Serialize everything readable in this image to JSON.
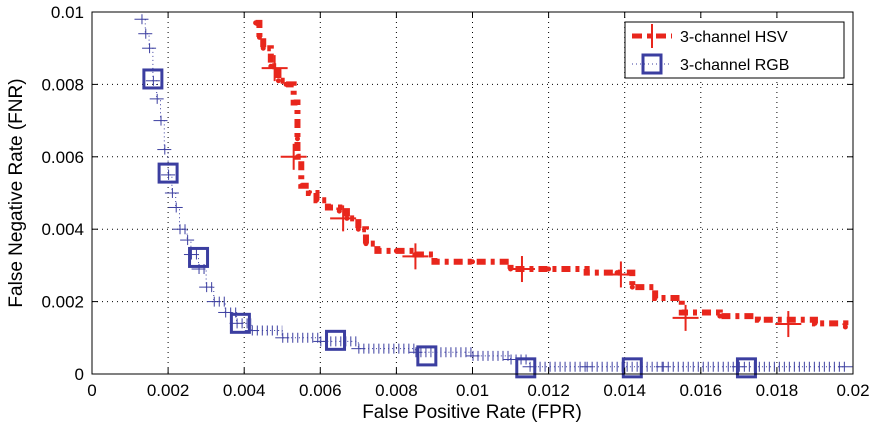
{
  "chart_data": {
    "type": "line",
    "title": "",
    "xlabel": "False Positive Rate (FPR)",
    "ylabel": "False Negative Rate (FNR)",
    "xlim": [
      0,
      0.02
    ],
    "ylim": [
      0,
      0.01
    ],
    "xticks": [
      "0",
      "0.002",
      "0.004",
      "0.006",
      "0.008",
      "0.01",
      "0.012",
      "0.014",
      "0.016",
      "0.018",
      "0.02"
    ],
    "yticks": [
      "0",
      "0.002",
      "0.004",
      "0.006",
      "0.008",
      "0.01"
    ],
    "grid": true,
    "legend_position": "top-right",
    "series": [
      {
        "name": "3-channel HSV",
        "color": "#e8261c",
        "marker": "plus",
        "line_style": "dash-dot",
        "x": [
          0.0043,
          0.0044,
          0.0045,
          0.0047,
          0.0049,
          0.0051,
          0.0053,
          0.0054,
          0.0054,
          0.0055,
          0.0057,
          0.0059,
          0.0062,
          0.0065,
          0.0067,
          0.007,
          0.0072,
          0.0075,
          0.008,
          0.0085,
          0.009,
          0.01,
          0.011,
          0.012,
          0.013,
          0.0138,
          0.0142,
          0.0148,
          0.0155,
          0.0165,
          0.0175,
          0.019,
          0.0198
        ],
        "y": [
          0.0097,
          0.0093,
          0.009,
          0.0085,
          0.0081,
          0.008,
          0.0075,
          0.0065,
          0.006,
          0.0052,
          0.005,
          0.0048,
          0.0046,
          0.0045,
          0.0043,
          0.004,
          0.0036,
          0.0034,
          0.0034,
          0.0033,
          0.0031,
          0.0031,
          0.0029,
          0.0029,
          0.0028,
          0.0028,
          0.0024,
          0.0021,
          0.0017,
          0.0016,
          0.0015,
          0.0014,
          0.0013
        ],
        "markers": [
          [
            0.0048,
            0.00845
          ],
          [
            0.0053,
            0.006
          ],
          [
            0.0066,
            0.0043
          ],
          [
            0.0085,
            0.00325
          ],
          [
            0.0113,
            0.0029
          ],
          [
            0.0139,
            0.00275
          ],
          [
            0.0156,
            0.00155
          ],
          [
            0.0183,
            0.00138
          ]
        ]
      },
      {
        "name": "3-channel RGB",
        "color": "#3b3ea0",
        "marker": "square",
        "line_style": "dotted",
        "x": [
          0.0013,
          0.0014,
          0.0015,
          0.0016,
          0.0017,
          0.0018,
          0.0019,
          0.002,
          0.0021,
          0.0022,
          0.0023,
          0.0025,
          0.0026,
          0.0028,
          0.003,
          0.0032,
          0.0035,
          0.0038,
          0.0042,
          0.005,
          0.006,
          0.007,
          0.0085,
          0.01,
          0.011,
          0.0115,
          0.013,
          0.015,
          0.017,
          0.0198
        ],
        "y": [
          0.0098,
          0.0094,
          0.009,
          0.0081,
          0.0076,
          0.007,
          0.0062,
          0.0055,
          0.005,
          0.0046,
          0.004,
          0.0037,
          0.0033,
          0.0029,
          0.0024,
          0.002,
          0.0017,
          0.0014,
          0.0012,
          0.001,
          0.0009,
          0.0007,
          0.0006,
          0.0005,
          0.0004,
          0.0002,
          0.0002,
          0.0002,
          0.0002,
          0.0002
        ],
        "markers": [
          [
            0.0016,
            0.00815
          ],
          [
            0.002,
            0.00555
          ],
          [
            0.0028,
            0.00322
          ],
          [
            0.0039,
            0.0014
          ],
          [
            0.0064,
            0.00093
          ],
          [
            0.0088,
            0.0005
          ],
          [
            0.0114,
            0.00017
          ],
          [
            0.0142,
            0.00017
          ],
          [
            0.0172,
            0.00017
          ]
        ]
      }
    ]
  }
}
